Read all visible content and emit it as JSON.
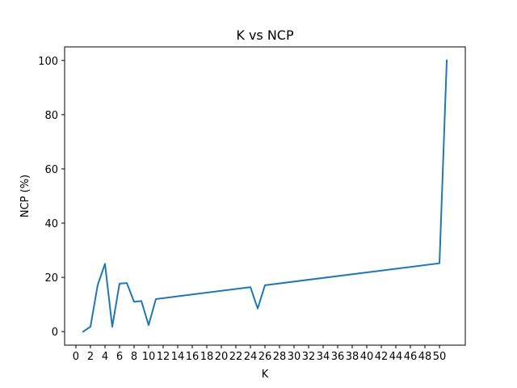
{
  "chart_data": {
    "type": "line",
    "title": "K vs NCP",
    "xlabel": "K",
    "ylabel": "NCP (%)",
    "xlim": [
      -1.55,
      53.55
    ],
    "ylim": [
      -5,
      105
    ],
    "xticks": [
      0,
      2,
      4,
      6,
      8,
      10,
      12,
      14,
      16,
      18,
      20,
      22,
      24,
      26,
      28,
      30,
      32,
      34,
      36,
      38,
      40,
      42,
      44,
      46,
      48,
      50
    ],
    "yticks": [
      0,
      20,
      40,
      60,
      80,
      100
    ],
    "grid": false,
    "legend": "none",
    "series": [
      {
        "color": "#1f77b4",
        "x": [
          1,
          2,
          3,
          4,
          5,
          6,
          7,
          8,
          9,
          10,
          11,
          24,
          25,
          26,
          50,
          51
        ],
        "y": [
          0,
          1.8,
          17.2,
          25,
          1.8,
          17.7,
          17.9,
          11,
          11.3,
          2.4,
          12,
          16.4,
          8.5,
          17.1,
          25.2,
          100
        ]
      }
    ]
  }
}
